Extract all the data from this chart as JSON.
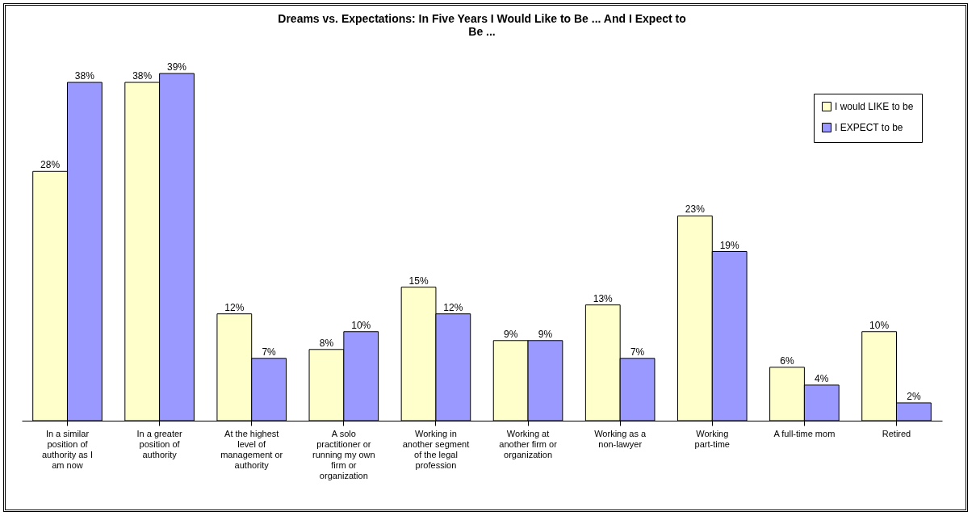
{
  "chart_data": {
    "type": "bar",
    "title": "Dreams vs. Expectations:  In Five Years I Would Like to Be ... And I Expect to Be ...",
    "categories": [
      "In a similar position of authority as I am now",
      "In a greater position of authority",
      "At the highest level of management or authority",
      "A solo practitioner or running my own firm or organization",
      "Working in another segment of the legal profession",
      "Working at another firm or organization",
      "Working as a non-lawyer",
      "Working part-time",
      "A full-time mom",
      "Retired"
    ],
    "series": [
      {
        "name": "I would LIKE to be",
        "color": "#ffffcc",
        "values": [
          28,
          38,
          12,
          8,
          15,
          9,
          13,
          23,
          6,
          10
        ],
        "value_labels": [
          "28%",
          "38%",
          "12%",
          "8%",
          "15%",
          "9%",
          "13%",
          "23%",
          "6%",
          "10%"
        ]
      },
      {
        "name": "I EXPECT to be",
        "color": "#9999ff",
        "values": [
          38,
          39,
          7,
          10,
          12,
          9,
          7,
          19,
          4,
          2
        ],
        "value_labels": [
          "38%",
          "39%",
          "7%",
          "10%",
          "12%",
          "9%",
          "7%",
          "19%",
          "4%",
          "2%"
        ]
      }
    ],
    "legend": "top right"
  }
}
